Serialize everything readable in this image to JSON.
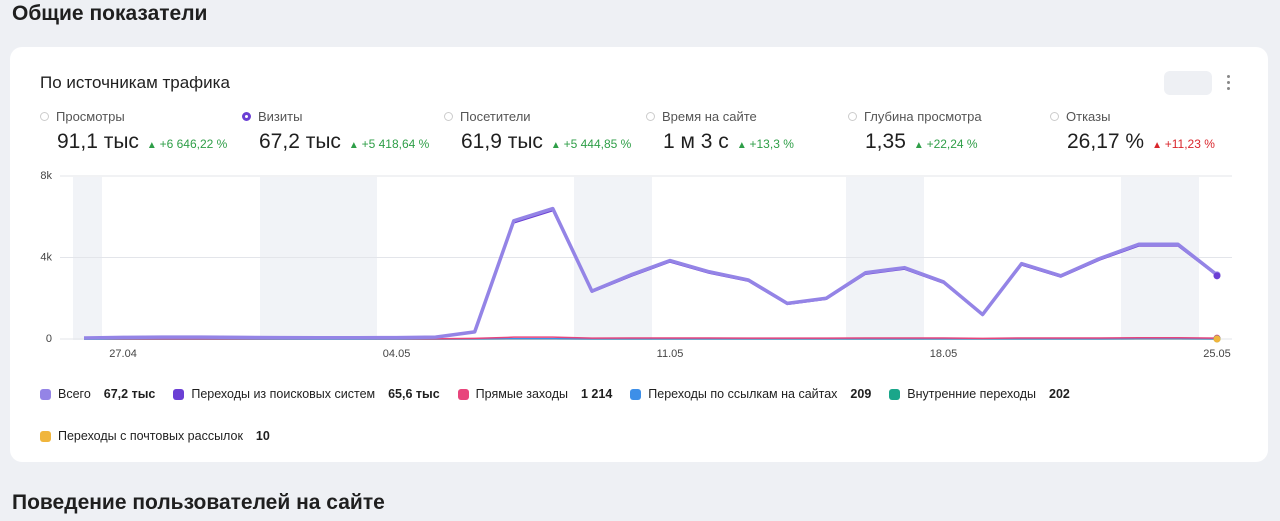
{
  "header": {
    "title": "Общие показатели"
  },
  "card": {
    "title": "По источникам трафика",
    "metrics": [
      {
        "label": "Просмотры",
        "value": "91,1 тыс",
        "change": "+6 646,22 %",
        "color": "#2e9e47"
      },
      {
        "label": "Визиты",
        "value": "67,2 тыс",
        "change": "+5 418,64 %",
        "color": "#2e9e47",
        "selected": true
      },
      {
        "label": "Посетители",
        "value": "61,9 тыс",
        "change": "+5 444,85 %",
        "color": "#2e9e47"
      },
      {
        "label": "Время на сайте",
        "value": "1 м 3 с",
        "change": "+13,3 %",
        "color": "#2e9e47"
      },
      {
        "label": "Глубина просмотра",
        "value": "1,35",
        "change": "+22,24 %",
        "color": "#2e9e47"
      },
      {
        "label": "Отказы",
        "value": "26,17 %",
        "change": "+11,23 %",
        "color": "#d9262c"
      }
    ]
  },
  "chart_data": {
    "type": "line",
    "categories": [
      null,
      "27.04",
      null,
      null,
      null,
      null,
      null,
      null,
      "04.05",
      null,
      null,
      null,
      null,
      null,
      null,
      "11.05",
      null,
      null,
      null,
      null,
      null,
      null,
      "18.05",
      null,
      null,
      null,
      null,
      null,
      null,
      "25.05"
    ],
    "ylim": [
      0,
      8000
    ],
    "yticks": [
      0,
      {
        "value": 4000,
        "label": "4k"
      },
      {
        "value": 8000,
        "label": "8k"
      }
    ],
    "grid": true,
    "series": [
      {
        "name": "Всего",
        "total": "67,2 тыс",
        "color": "#9484e6",
        "values": [
          50,
          80,
          90,
          90,
          80,
          70,
          60,
          60,
          70,
          90,
          350,
          5800,
          6400,
          2350,
          3150,
          3850,
          3300,
          2900,
          1750,
          2000,
          3250,
          3500,
          2800,
          1200,
          3700,
          3100,
          3950,
          4650,
          4650,
          3150
        ]
      },
      {
        "name": "Переходы из поисковых систем",
        "total": "65,6 тыс",
        "color": "#6b3fd4",
        "values": [
          40,
          70,
          80,
          80,
          70,
          60,
          50,
          50,
          60,
          80,
          320,
          5700,
          6300,
          2300,
          3080,
          3780,
          3230,
          2840,
          1700,
          1950,
          3180,
          3430,
          2740,
          1160,
          3630,
          3040,
          3880,
          4570,
          4570,
          3100
        ]
      },
      {
        "name": "Прямые заходы",
        "total": "1 214",
        "color": "#e8457c",
        "values": [
          10,
          10,
          10,
          10,
          10,
          10,
          10,
          10,
          10,
          10,
          30,
          90,
          90,
          40,
          50,
          50,
          50,
          40,
          40,
          40,
          50,
          50,
          50,
          30,
          50,
          50,
          50,
          60,
          60,
          40
        ]
      },
      {
        "name": "Переходы по ссылкам на сайтах",
        "total": "209",
        "color": "#3d8fe8",
        "values": [
          0,
          0,
          0,
          0,
          0,
          0,
          0,
          0,
          0,
          0,
          5,
          15,
          15,
          7,
          8,
          9,
          8,
          8,
          6,
          6,
          8,
          9,
          8,
          5,
          9,
          8,
          9,
          10,
          10,
          8
        ]
      },
      {
        "name": "Внутренние переходы",
        "total": "202",
        "color": "#1aa68a",
        "values": [
          0,
          0,
          0,
          0,
          0,
          0,
          0,
          0,
          0,
          0,
          5,
          14,
          14,
          7,
          8,
          9,
          8,
          8,
          6,
          6,
          8,
          9,
          8,
          5,
          9,
          8,
          9,
          10,
          10,
          7
        ]
      },
      {
        "name": "Переходы с почтовых рассылок",
        "total": "10",
        "color": "#f0b53c",
        "values": [
          0,
          0,
          0,
          0,
          0,
          0,
          0,
          0,
          0,
          0,
          0,
          1,
          1,
          0,
          1,
          1,
          0,
          1,
          0,
          0,
          1,
          0,
          1,
          0,
          0,
          1,
          0,
          1,
          0,
          0
        ]
      }
    ]
  },
  "footer": {
    "title": "Поведение пользователей на сайте"
  }
}
